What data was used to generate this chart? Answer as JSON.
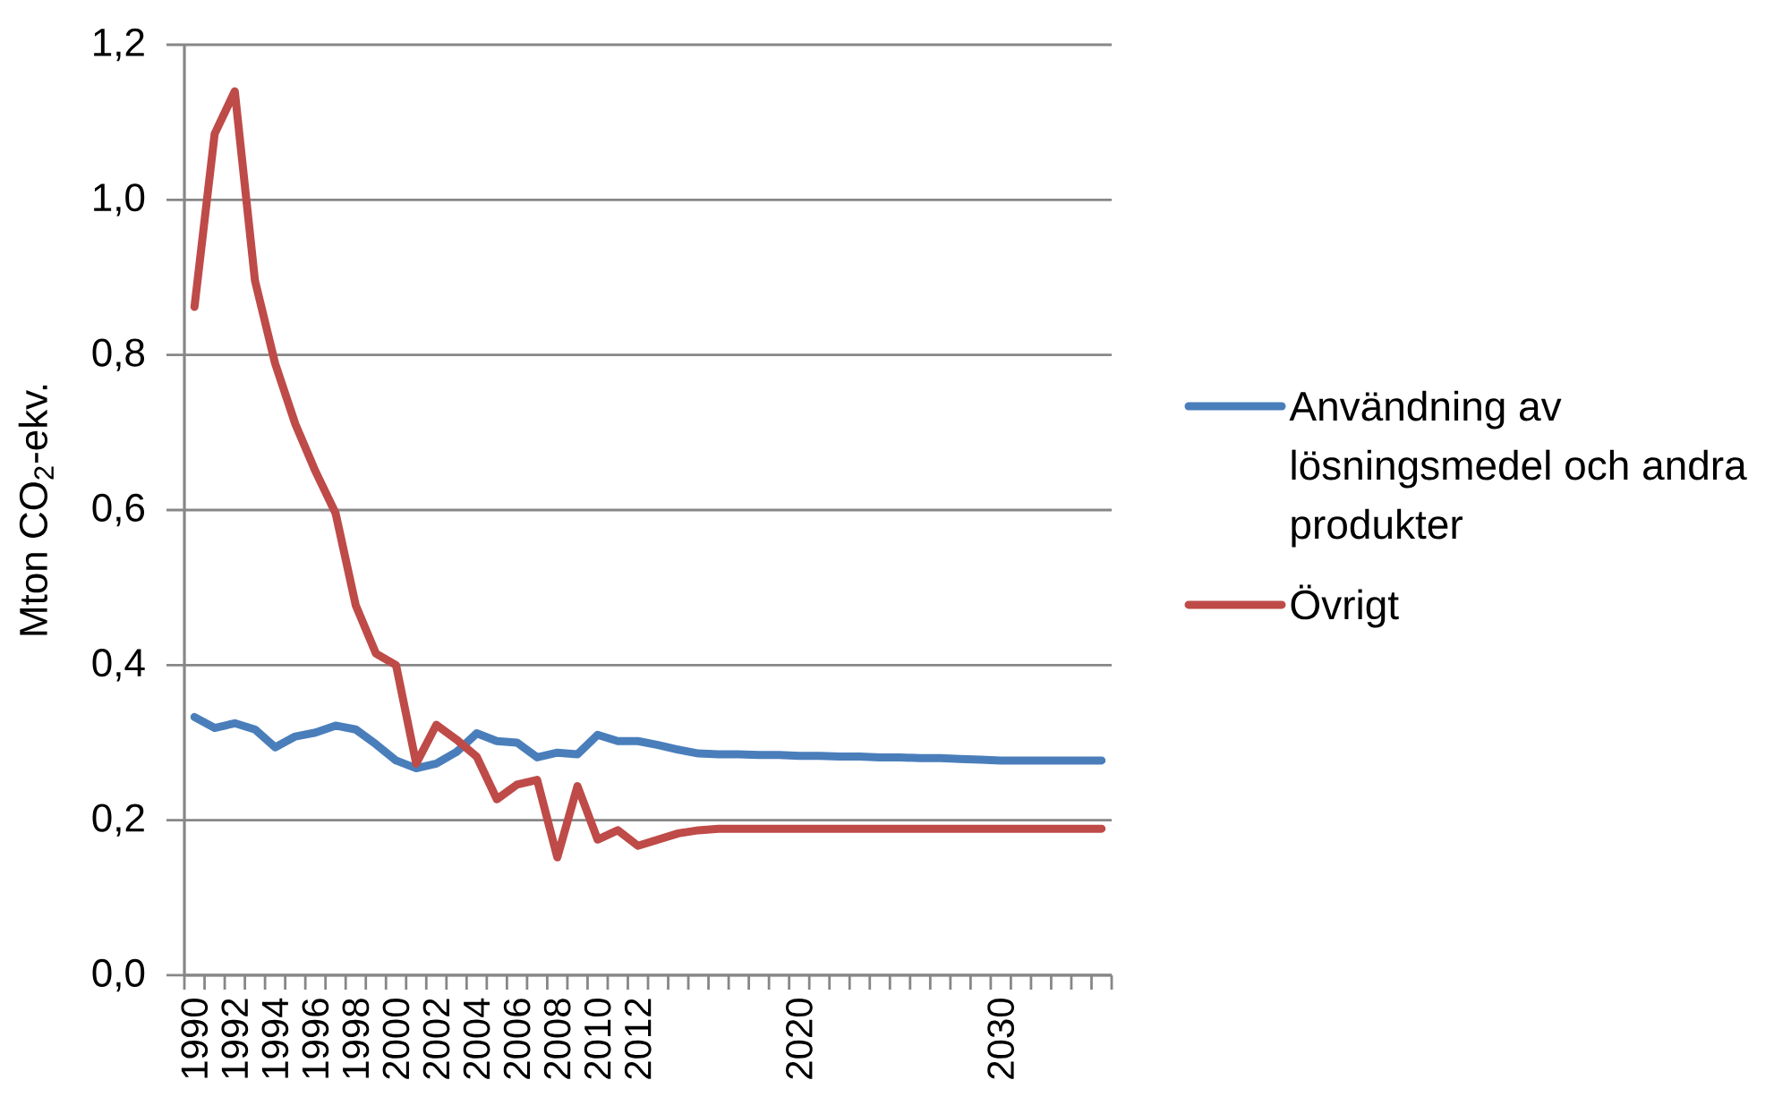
{
  "chart_data": {
    "type": "line",
    "ylabel": "Mton CO$_{2}$-ekv.",
    "categories": [
      "1990",
      null,
      "1992",
      null,
      "1994",
      null,
      "1996",
      null,
      "1998",
      null,
      "2000",
      null,
      "2002",
      null,
      "2004",
      null,
      "2006",
      null,
      "2008",
      null,
      "2010",
      null,
      "2012",
      null,
      null,
      null,
      null,
      null,
      null,
      null,
      "2020",
      null,
      null,
      null,
      null,
      null,
      null,
      null,
      null,
      null,
      "2030",
      null,
      null,
      null,
      null,
      null
    ],
    "series": [
      {
        "name": "Användning av lösningsmedel och andra produkter",
        "color": "#4a7ebb",
        "values": [
          0.333,
          0.319,
          0.325,
          0.317,
          0.294,
          0.308,
          0.313,
          0.322,
          0.317,
          0.298,
          0.277,
          0.267,
          0.273,
          0.288,
          0.312,
          0.302,
          0.3,
          0.281,
          0.287,
          0.285,
          0.31,
          0.302,
          0.302,
          0.297,
          0.291,
          0.286,
          0.285,
          0.285,
          0.284,
          0.284,
          0.283,
          0.283,
          0.282,
          0.282,
          0.281,
          0.281,
          0.28,
          0.28,
          0.279,
          0.278,
          0.277,
          0.277,
          0.277,
          0.277,
          0.277,
          0.277
        ]
      },
      {
        "name": "Övrigt",
        "color": "#be4b48",
        "values": [
          0.862,
          1.085,
          1.14,
          0.896,
          0.789,
          0.711,
          0.65,
          0.596,
          0.477,
          0.415,
          0.4,
          0.273,
          0.323,
          0.304,
          0.282,
          0.227,
          0.246,
          0.252,
          0.152,
          0.244,
          0.175,
          0.187,
          0.167,
          0.175,
          0.183,
          0.187,
          0.189,
          0.189,
          0.189,
          0.189,
          0.189,
          0.189,
          0.189,
          0.189,
          0.189,
          0.189,
          0.189,
          0.189,
          0.189,
          0.189,
          0.189,
          0.189,
          0.189,
          0.189,
          0.189,
          0.189
        ]
      }
    ],
    "ylim": [
      0,
      1.2
    ],
    "yticks": [
      {
        "value": 0,
        "label": "0,0"
      },
      {
        "value": 0.2,
        "label": "0,2"
      },
      {
        "value": 0.4,
        "label": "0,4"
      },
      {
        "value": 0.6,
        "label": "0,6"
      },
      {
        "value": 0.8,
        "label": "0,8"
      },
      {
        "value": 1.0,
        "label": "1,0"
      },
      {
        "value": 1.2,
        "label": "1,2"
      }
    ],
    "grid": "y",
    "legend": "right",
    "line_style": "solid"
  }
}
